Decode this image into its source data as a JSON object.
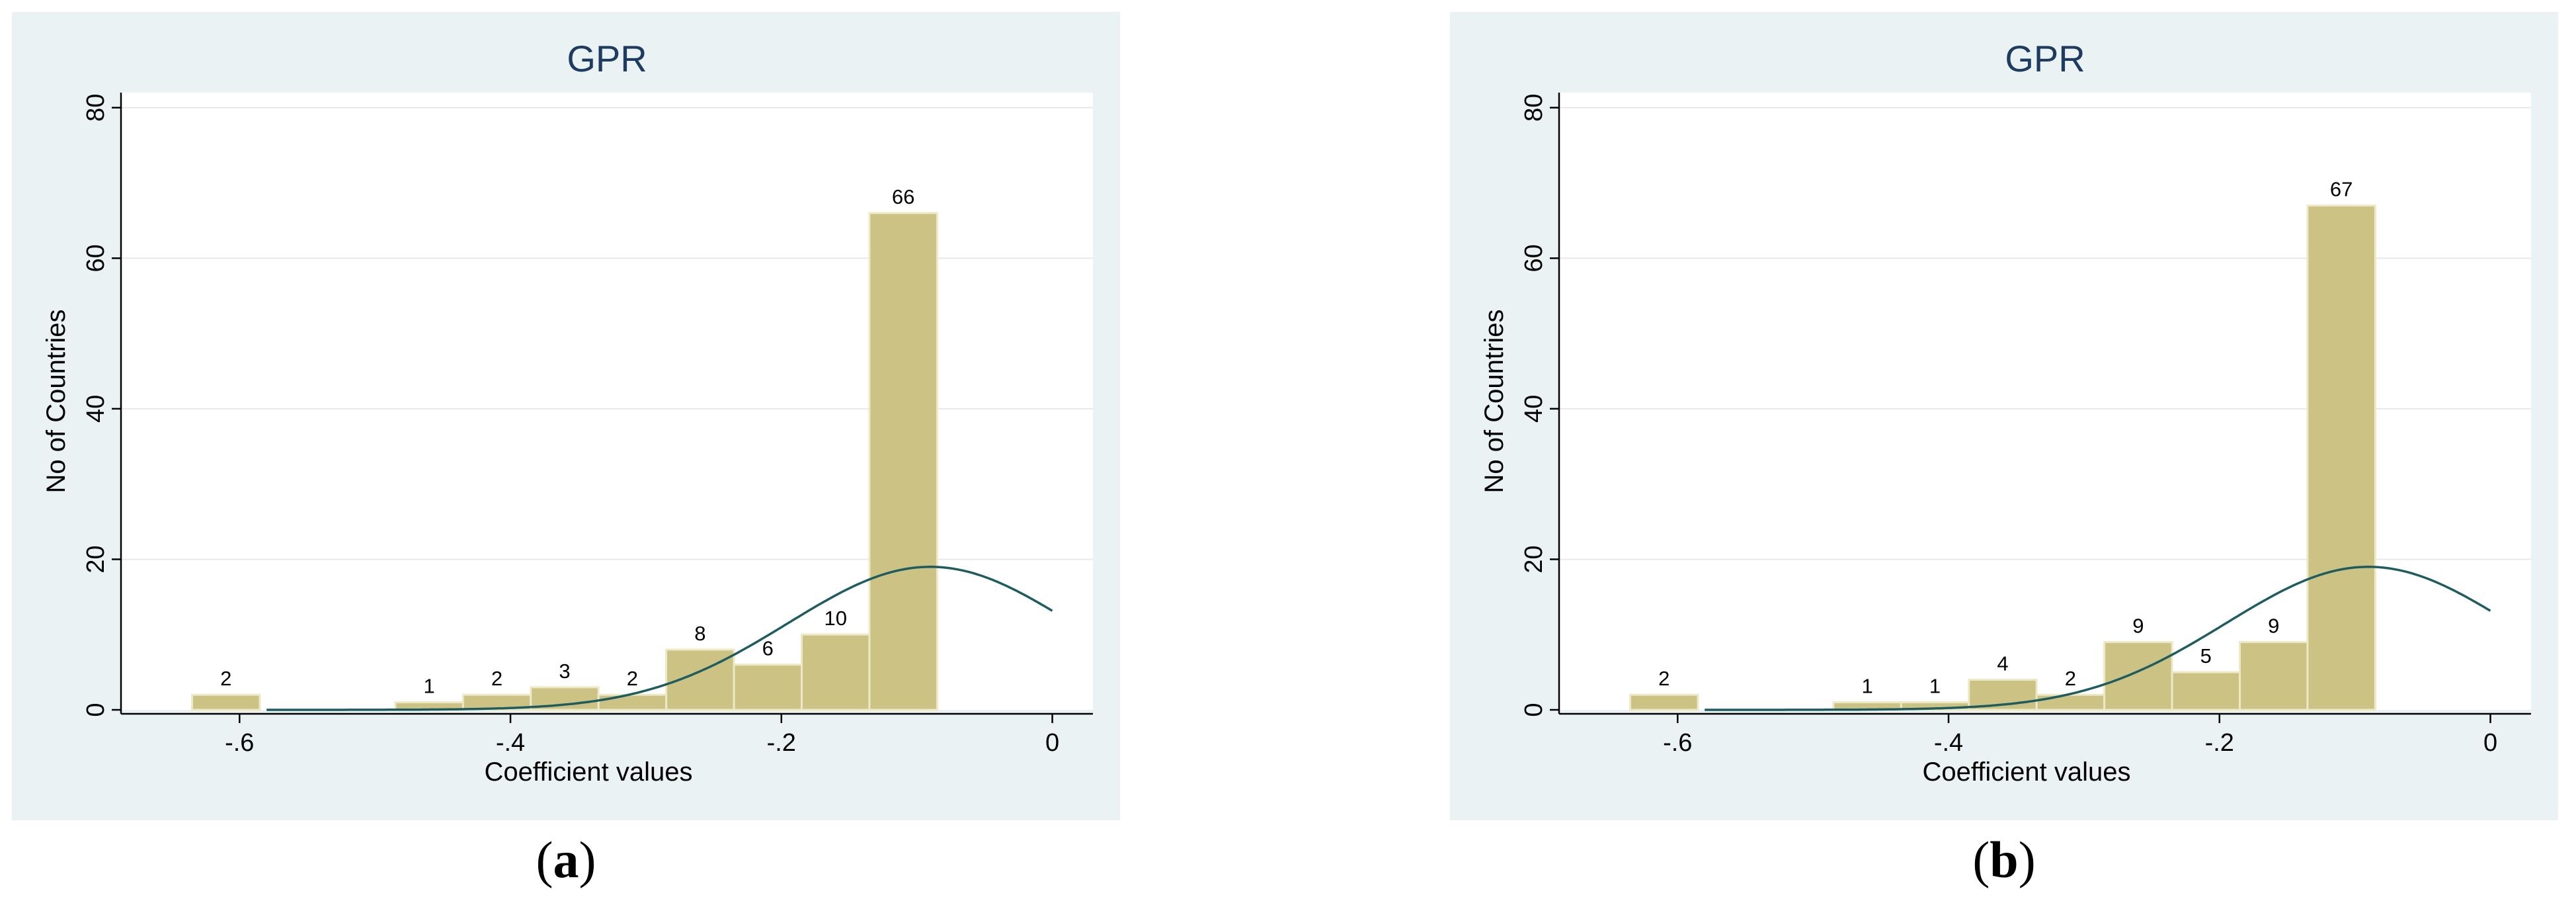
{
  "chart_data": [
    {
      "type": "bar",
      "panel_label": "a",
      "title": "GPR",
      "xlabel": "Coefficient values",
      "ylabel": "No of Countries",
      "xlim": [
        -0.6875,
        0.03
      ],
      "ylim": [
        0,
        82
      ],
      "x_ticks": [
        {
          "v": -0.6,
          "label": "-.6"
        },
        {
          "v": -0.4,
          "label": "-.4"
        },
        {
          "v": -0.2,
          "label": "-.2"
        },
        {
          "v": 0,
          "label": "0"
        }
      ],
      "y_ticks": [
        0,
        20,
        40,
        60,
        80
      ],
      "grid": true,
      "bin_width": 0.05,
      "bins": [
        {
          "start": -0.635,
          "value": 2,
          "label": "2"
        },
        {
          "start": -0.485,
          "value": 1,
          "label": "1"
        },
        {
          "start": -0.435,
          "value": 2,
          "label": "2"
        },
        {
          "start": -0.385,
          "value": 3,
          "label": "3"
        },
        {
          "start": -0.335,
          "value": 2,
          "label": "2"
        },
        {
          "start": -0.285,
          "value": 8,
          "label": "8"
        },
        {
          "start": -0.235,
          "value": 6,
          "label": "6"
        },
        {
          "start": -0.185,
          "value": 10,
          "label": "10"
        },
        {
          "start": -0.135,
          "value": 66,
          "label": "66"
        }
      ],
      "normal_curve": {
        "mean": -0.09,
        "peak": 19
      }
    },
    {
      "type": "bar",
      "panel_label": "b",
      "title": "GPR",
      "xlabel": "Coefficient values",
      "ylabel": "No of Countries",
      "xlim": [
        -0.6875,
        0.03
      ],
      "ylim": [
        0,
        82
      ],
      "x_ticks": [
        {
          "v": -0.6,
          "label": "-.6"
        },
        {
          "v": -0.4,
          "label": "-.4"
        },
        {
          "v": -0.2,
          "label": "-.2"
        },
        {
          "v": 0,
          "label": "0"
        }
      ],
      "y_ticks": [
        0,
        20,
        40,
        60,
        80
      ],
      "grid": true,
      "bin_width": 0.05,
      "bins": [
        {
          "start": -0.635,
          "value": 2,
          "label": "2"
        },
        {
          "start": -0.485,
          "value": 1,
          "label": "1"
        },
        {
          "start": -0.435,
          "value": 1,
          "label": "1"
        },
        {
          "start": -0.385,
          "value": 4,
          "label": "4"
        },
        {
          "start": -0.335,
          "value": 2,
          "label": "2"
        },
        {
          "start": -0.285,
          "value": 9,
          "label": "9"
        },
        {
          "start": -0.235,
          "value": 5,
          "label": "5"
        },
        {
          "start": -0.185,
          "value": 9,
          "label": "9"
        },
        {
          "start": -0.135,
          "value": 67,
          "label": "67"
        }
      ],
      "normal_curve": {
        "mean": -0.09,
        "peak": 19
      }
    }
  ],
  "colors": {
    "bar_fill": "#cbc283",
    "bar_stroke": "#ede9c6",
    "curve": "#1f5c60",
    "plot_bg": "#ffffff",
    "panel_bg": "#eaf2f3",
    "title": "#1e3b60",
    "grid": "#e8e8e8"
  }
}
